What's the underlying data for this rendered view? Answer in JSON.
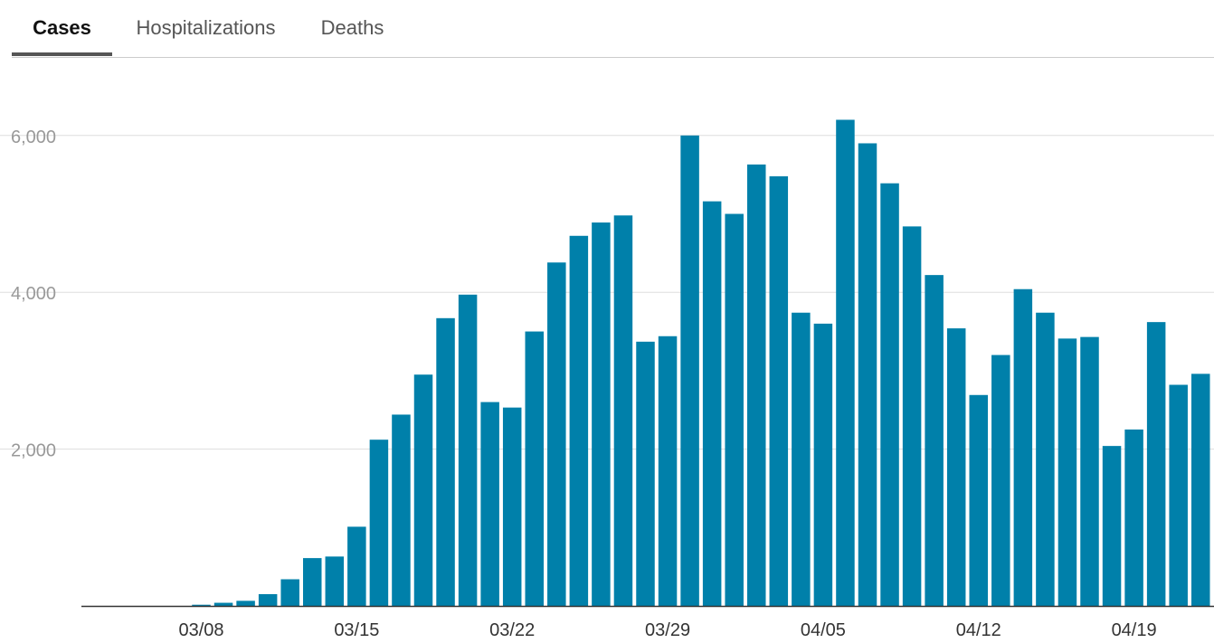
{
  "tabs": [
    {
      "label": "Cases",
      "active": true
    },
    {
      "label": "Hospitalizations",
      "active": false
    },
    {
      "label": "Deaths",
      "active": false
    }
  ],
  "colors": {
    "bar": "#0080aa",
    "grid": "#dddddd",
    "axis": "#333333",
    "tick_label_y": "#999999",
    "tick_label_x": "#333333",
    "tab_underline": "#555555"
  },
  "chart_data": {
    "type": "bar",
    "title": "",
    "xlabel": "",
    "ylabel": "",
    "ylim": [
      0,
      6600
    ],
    "grid": true,
    "yticks": [
      2000,
      4000,
      6000
    ],
    "ytick_labels": [
      "2,000",
      "4,000",
      "6,000"
    ],
    "xtick_labels": [
      {
        "category": "03/08",
        "label": "03/08"
      },
      {
        "category": "03/15",
        "label": "03/15"
      },
      {
        "category": "03/22",
        "label": "03/22"
      },
      {
        "category": "03/29",
        "label": "03/29"
      },
      {
        "category": "04/05",
        "label": "04/05"
      },
      {
        "category": "04/12",
        "label": "04/12"
      },
      {
        "category": "04/19",
        "label": "04/19"
      }
    ],
    "categories": [
      "03/03",
      "03/04",
      "03/05",
      "03/06",
      "03/07",
      "03/08",
      "03/09",
      "03/10",
      "03/11",
      "03/12",
      "03/13",
      "03/14",
      "03/15",
      "03/16",
      "03/17",
      "03/18",
      "03/19",
      "03/20",
      "03/21",
      "03/22",
      "03/23",
      "03/24",
      "03/25",
      "03/26",
      "03/27",
      "03/28",
      "03/29",
      "03/30",
      "03/31",
      "04/01",
      "04/02",
      "04/03",
      "04/04",
      "04/05",
      "04/06",
      "04/07",
      "04/08",
      "04/09",
      "04/10",
      "04/11",
      "04/12",
      "04/13",
      "04/14",
      "04/15",
      "04/16",
      "04/17",
      "04/18",
      "04/19",
      "04/20",
      "04/21",
      "04/22"
    ],
    "values": [
      0,
      0,
      0,
      0,
      0,
      15,
      40,
      65,
      150,
      340,
      610,
      630,
      1010,
      2120,
      2440,
      2950,
      3670,
      3970,
      2600,
      2530,
      3500,
      4380,
      4720,
      4890,
      4980,
      3370,
      3440,
      6000,
      5160,
      5000,
      5630,
      5480,
      3740,
      3600,
      6200,
      5900,
      5390,
      4840,
      4220,
      3540,
      2690,
      3200,
      4040,
      3740,
      3410,
      3430,
      2040,
      2250,
      3620,
      2820,
      2960
    ]
  }
}
